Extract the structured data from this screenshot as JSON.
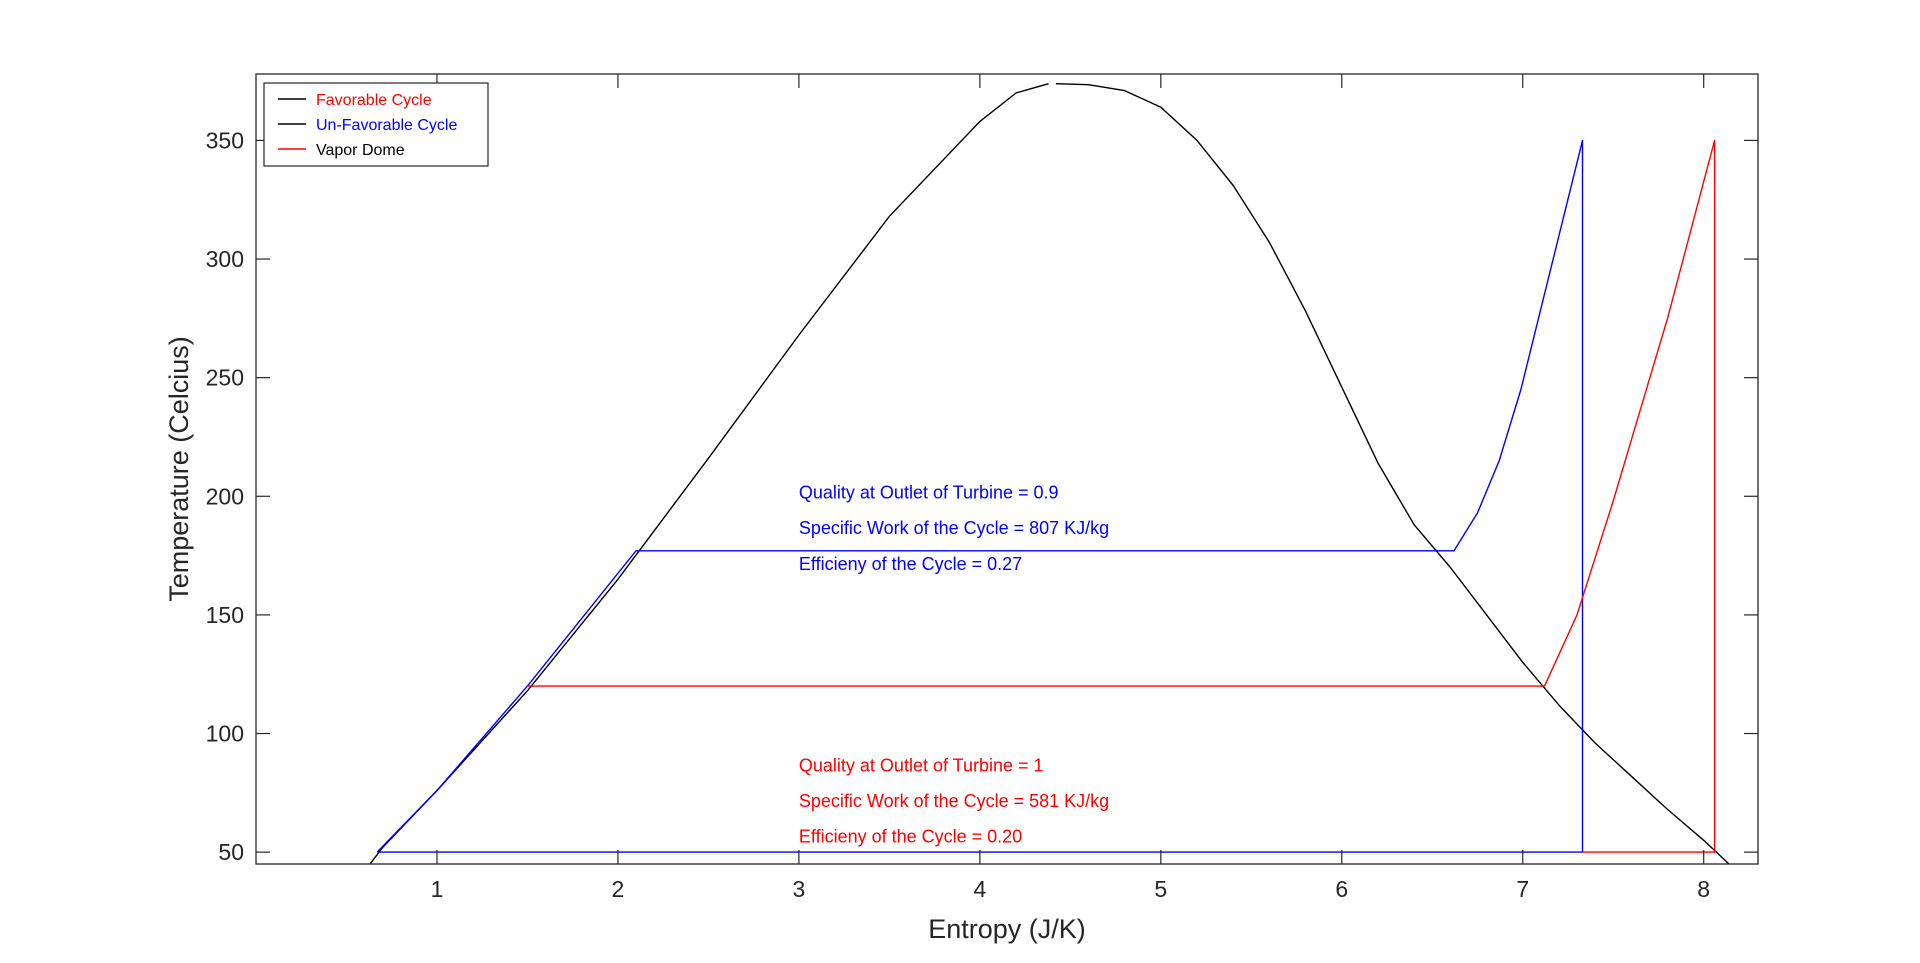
{
  "chart_data": {
    "type": "line",
    "title": "",
    "xlabel": "Entropy (J/K)",
    "ylabel": "Temperature (Celcius)",
    "xlim": [
      0,
      8.3
    ],
    "ylim": [
      45,
      378
    ],
    "xticks": [
      1,
      2,
      3,
      4,
      5,
      6,
      7,
      8
    ],
    "yticks": [
      50,
      100,
      150,
      200,
      250,
      300,
      350
    ],
    "grid": false,
    "legend_position": "top-left",
    "legend": [
      {
        "label": "Favorable Cycle",
        "text_color": "#ff0000",
        "line_color": "#000000"
      },
      {
        "label": "Un-Favorable Cycle",
        "text_color": "#0000ff",
        "line_color": "#000000"
      },
      {
        "label": "Vapor Dome",
        "text_color": "#000000",
        "line_color": "#ff0000"
      }
    ],
    "series": [
      {
        "color": "#000000",
        "points": [
          [
            0.63,
            45
          ],
          [
            0.7,
            52
          ],
          [
            1.0,
            76
          ],
          [
            1.5,
            118
          ],
          [
            2.0,
            165
          ],
          [
            2.5,
            216
          ],
          [
            3.0,
            268
          ],
          [
            3.5,
            318
          ],
          [
            4.0,
            358
          ],
          [
            4.2,
            370
          ],
          [
            4.38,
            373.9
          ]
        ]
      },
      {
        "color": "#000000",
        "points": [
          [
            4.42,
            373.9
          ],
          [
            4.6,
            373.5
          ],
          [
            4.8,
            371
          ],
          [
            5.0,
            364
          ],
          [
            5.2,
            350
          ],
          [
            5.4,
            331
          ],
          [
            5.6,
            307
          ],
          [
            5.8,
            278
          ],
          [
            6.0,
            246
          ],
          [
            6.2,
            214
          ],
          [
            6.4,
            188
          ],
          [
            6.6,
            170
          ],
          [
            6.8,
            150
          ],
          [
            7.0,
            130
          ],
          [
            7.2,
            112
          ],
          [
            7.4,
            96
          ],
          [
            7.6,
            82
          ],
          [
            7.8,
            68
          ],
          [
            8.0,
            55
          ],
          [
            8.14,
            45
          ]
        ]
      },
      {
        "color": "#0000ff",
        "points": [
          [
            0.67,
            50
          ],
          [
            7.33,
            50
          ],
          [
            7.33,
            350
          ],
          [
            6.99,
            245
          ],
          [
            6.87,
            215
          ],
          [
            6.75,
            193
          ],
          [
            6.62,
            177
          ],
          [
            2.1,
            177
          ],
          [
            1.5,
            120
          ],
          [
            1.0,
            76
          ],
          [
            0.67,
            50
          ]
        ]
      },
      {
        "color": "#ff0000",
        "points": [
          [
            7.33,
            50
          ],
          [
            8.06,
            50
          ],
          [
            8.06,
            350
          ],
          [
            7.8,
            275
          ],
          [
            7.5,
            198
          ],
          [
            7.3,
            150
          ],
          [
            7.12,
            120
          ],
          [
            1.5,
            120
          ]
        ]
      }
    ],
    "annotations": [
      {
        "text": "Quality at Outlet of Turbine = 0.9",
        "x": 3.0,
        "y": 199,
        "color": "#0000ff"
      },
      {
        "text": "Specific Work of the Cycle   = 807 KJ/kg",
        "x": 3.0,
        "y": 184,
        "color": "#0000ff"
      },
      {
        "text": "Efficieny of the Cycle         = 0.27",
        "x": 3.0,
        "y": 169,
        "color": "#0000ff"
      },
      {
        "text": "Quality at Outlet of Turbine = 1",
        "x": 3.0,
        "y": 84,
        "color": "#ff0000"
      },
      {
        "text": "Specific Work of the Cycle   = 581 KJ/kg",
        "x": 3.0,
        "y": 69,
        "color": "#ff0000"
      },
      {
        "text": "Efficieny of the Cycle         = 0.20",
        "x": 3.0,
        "y": 54,
        "color": "#ff0000"
      }
    ]
  }
}
